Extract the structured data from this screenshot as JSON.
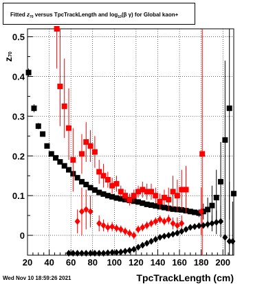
{
  "header": {
    "title_prefix": "Fitted ",
    "title_z": "z",
    "title_z_sub": "70",
    "title_mid": " versus TpcTrackLength and log",
    "title_log_sub": "10",
    "title_suffix": "(β  γ) for Global kaon+"
  },
  "footer": {
    "date": "Wed Nov 10 18:59:26 2021"
  },
  "chart_data": {
    "type": "scatter",
    "title": "Fitted z70 versus TpcTrackLength and log10(β γ) for Global kaon+",
    "xlabel": "TpcTrackLength (cm)",
    "ylabel": "z70",
    "xlim": [
      20,
      210
    ],
    "ylim": [
      -0.05,
      0.52
    ],
    "x_ticks": [
      "20",
      "40",
      "60",
      "80",
      "100",
      "120",
      "140",
      "160",
      "180",
      "200"
    ],
    "x_tick_values": [
      20,
      40,
      60,
      80,
      100,
      120,
      140,
      160,
      180,
      200
    ],
    "y_ticks": [
      "0",
      "0.1",
      "0.2",
      "0.3",
      "0.4",
      "0.5"
    ],
    "y_tick_values": [
      0,
      0.1,
      0.2,
      0.3,
      0.4,
      0.5
    ],
    "grid": true,
    "series": [
      {
        "color": "#000000",
        "marker": "square",
        "points": [
          [
            21,
            0.41
          ],
          [
            26,
            0.32
          ],
          [
            30,
            0.275
          ],
          [
            34,
            0.255
          ],
          [
            38,
            0.225
          ],
          [
            42,
            0.205
          ],
          [
            46,
            0.195
          ],
          [
            50,
            0.185
          ],
          [
            54,
            0.175
          ],
          [
            58,
            0.165
          ],
          [
            62,
            0.155
          ],
          [
            66,
            0.145
          ],
          [
            70,
            0.135
          ],
          [
            74,
            0.128
          ],
          [
            78,
            0.12
          ],
          [
            82,
            0.114
          ],
          [
            86,
            0.108
          ],
          [
            90,
            0.104
          ],
          [
            94,
            0.1
          ],
          [
            98,
            0.097
          ],
          [
            102,
            0.094
          ],
          [
            106,
            0.092
          ],
          [
            110,
            0.09
          ],
          [
            114,
            0.088
          ],
          [
            118,
            0.086
          ],
          [
            122,
            0.084
          ],
          [
            126,
            0.081
          ],
          [
            130,
            0.078
          ],
          [
            134,
            0.076
          ],
          [
            138,
            0.074
          ],
          [
            142,
            0.072
          ],
          [
            146,
            0.07
          ],
          [
            150,
            0.068
          ],
          [
            154,
            0.066
          ],
          [
            158,
            0.065
          ],
          [
            162,
            0.064
          ],
          [
            166,
            0.062
          ],
          [
            170,
            0.06
          ],
          [
            174,
            0.058
          ],
          [
            178,
            0.056
          ],
          [
            182,
            0.06
          ],
          [
            186,
            0.065
          ],
          [
            190,
            0.075
          ],
          [
            194,
            0.095
          ],
          [
            198,
            0.135
          ],
          [
            202,
            0.24
          ],
          [
            206,
            0.32
          ],
          [
            210,
            0.105
          ]
        ],
        "errors": [
          [
            0.01,
            0.01
          ],
          [
            0.01,
            0.01
          ],
          [
            0.008,
            0.008
          ],
          [
            0.006,
            0.006
          ],
          [
            0.005,
            0.005
          ],
          [
            0.004,
            0.004
          ],
          [
            0.003,
            0.003
          ],
          [
            0.003,
            0.003
          ],
          [
            0.003,
            0.003
          ],
          [
            0.003,
            0.003
          ],
          [
            0.003,
            0.003
          ],
          [
            0.003,
            0.003
          ],
          [
            0.003,
            0.003
          ],
          [
            0.003,
            0.003
          ],
          [
            0.003,
            0.003
          ],
          [
            0.003,
            0.003
          ],
          [
            0.003,
            0.003
          ],
          [
            0.003,
            0.003
          ],
          [
            0.003,
            0.003
          ],
          [
            0.003,
            0.003
          ],
          [
            0.003,
            0.003
          ],
          [
            0.003,
            0.003
          ],
          [
            0.003,
            0.003
          ],
          [
            0.003,
            0.003
          ],
          [
            0.003,
            0.003
          ],
          [
            0.003,
            0.003
          ],
          [
            0.003,
            0.003
          ],
          [
            0.003,
            0.003
          ],
          [
            0.003,
            0.003
          ],
          [
            0.003,
            0.003
          ],
          [
            0.003,
            0.003
          ],
          [
            0.003,
            0.003
          ],
          [
            0.003,
            0.003
          ],
          [
            0.003,
            0.003
          ],
          [
            0.003,
            0.003
          ],
          [
            0.003,
            0.003
          ],
          [
            0.003,
            0.003
          ],
          [
            0.003,
            0.003
          ],
          [
            0.004,
            0.004
          ],
          [
            0.01,
            0.01
          ],
          [
            0.02,
            0.02
          ],
          [
            0.03,
            0.03
          ],
          [
            0.05,
            0.05
          ],
          [
            0.07,
            0.07
          ],
          [
            0.1,
            0.1
          ],
          [
            0.2,
            0.2
          ],
          [
            0.28,
            0.28
          ],
          [
            0.25,
            0.25
          ]
        ]
      },
      {
        "color": "#ff0000",
        "marker": "square",
        "points": [
          [
            47,
            0.52
          ],
          [
            50,
            0.375
          ],
          [
            54,
            0.325
          ],
          [
            58,
            0.27
          ],
          [
            62,
            0.19
          ],
          [
            70,
            0.205
          ],
          [
            74,
            0.235
          ],
          [
            78,
            0.225
          ],
          [
            82,
            0.21
          ],
          [
            86,
            0.16
          ],
          [
            90,
            0.15
          ],
          [
            94,
            0.14
          ],
          [
            98,
            0.125
          ],
          [
            102,
            0.13
          ],
          [
            106,
            0.11
          ],
          [
            110,
            0.1
          ],
          [
            114,
            0.09
          ],
          [
            118,
            0.1
          ],
          [
            122,
            0.11
          ],
          [
            126,
            0.115
          ],
          [
            130,
            0.11
          ],
          [
            134,
            0.11
          ],
          [
            138,
            0.1
          ],
          [
            142,
            0.085
          ],
          [
            146,
            0.095
          ],
          [
            150,
            0.09
          ],
          [
            154,
            0.11
          ],
          [
            158,
            0.1
          ],
          [
            162,
            0.115
          ],
          [
            166,
            0.115
          ],
          [
            181,
            0.205
          ]
        ],
        "errors": [
          [
            0.1,
            0.56
          ],
          [
            0.1,
            0.2
          ],
          [
            0.08,
            0.12
          ],
          [
            0.08,
            0.1
          ],
          [
            0.08,
            0.08
          ],
          [
            0.05,
            0.05
          ],
          [
            0.05,
            0.05
          ],
          [
            0.04,
            0.04
          ],
          [
            0.04,
            0.04
          ],
          [
            0.03,
            0.03
          ],
          [
            0.03,
            0.03
          ],
          [
            0.02,
            0.02
          ],
          [
            0.02,
            0.02
          ],
          [
            0.02,
            0.02
          ],
          [
            0.015,
            0.015
          ],
          [
            0.015,
            0.015
          ],
          [
            0.015,
            0.015
          ],
          [
            0.015,
            0.015
          ],
          [
            0.015,
            0.015
          ],
          [
            0.02,
            0.02
          ],
          [
            0.02,
            0.02
          ],
          [
            0.02,
            0.02
          ],
          [
            0.02,
            0.02
          ],
          [
            0.02,
            0.02
          ],
          [
            0.02,
            0.02
          ],
          [
            0.03,
            0.03
          ],
          [
            0.04,
            0.04
          ],
          [
            0.04,
            0.04
          ],
          [
            0.05,
            0.05
          ],
          [
            0.06,
            0.06
          ],
          [
            0.5,
            0.4
          ]
        ]
      },
      {
        "color": "#ff0000",
        "marker": "diamond",
        "points": [
          [
            66,
            0.035
          ],
          [
            70,
            0.06
          ],
          [
            74,
            0.065
          ],
          [
            78,
            0.06
          ],
          [
            86,
            0.03
          ],
          [
            90,
            0.025
          ],
          [
            94,
            0.02
          ],
          [
            98,
            0.022
          ],
          [
            102,
            0.018
          ],
          [
            106,
            0.015
          ],
          [
            110,
            0.01
          ],
          [
            114,
            0.005
          ],
          [
            118,
            0.0
          ],
          [
            122,
            0.015
          ],
          [
            126,
            0.02
          ],
          [
            130,
            0.025
          ],
          [
            134,
            0.03
          ],
          [
            138,
            0.035
          ],
          [
            142,
            0.04
          ],
          [
            146,
            0.035
          ],
          [
            150,
            0.04
          ],
          [
            154,
            0.03
          ],
          [
            158,
            0.025
          ],
          [
            162,
            0.03
          ],
          [
            180,
            0.06
          ]
        ],
        "errors": [
          [
            0.03,
            0.03
          ],
          [
            0.06,
            0.06
          ],
          [
            0.05,
            0.05
          ],
          [
            0.04,
            0.04
          ],
          [
            0.02,
            0.02
          ],
          [
            0.015,
            0.015
          ],
          [
            0.012,
            0.012
          ],
          [
            0.012,
            0.012
          ],
          [
            0.01,
            0.01
          ],
          [
            0.01,
            0.01
          ],
          [
            0.01,
            0.01
          ],
          [
            0.01,
            0.01
          ],
          [
            0.01,
            0.01
          ],
          [
            0.01,
            0.01
          ],
          [
            0.01,
            0.01
          ],
          [
            0.01,
            0.01
          ],
          [
            0.01,
            0.01
          ],
          [
            0.01,
            0.01
          ],
          [
            0.01,
            0.01
          ],
          [
            0.01,
            0.01
          ],
          [
            0.012,
            0.012
          ],
          [
            0.015,
            0.015
          ],
          [
            0.02,
            0.02
          ],
          [
            0.02,
            0.02
          ],
          [
            0.06,
            0.06
          ]
        ]
      },
      {
        "color": "#000000",
        "marker": "diamond",
        "points": [
          [
            58,
            -0.045
          ],
          [
            62,
            -0.045
          ],
          [
            66,
            -0.045
          ],
          [
            70,
            -0.045
          ],
          [
            74,
            -0.045
          ],
          [
            78,
            -0.045
          ],
          [
            82,
            -0.045
          ],
          [
            86,
            -0.045
          ],
          [
            90,
            -0.045
          ],
          [
            94,
            -0.044
          ],
          [
            98,
            -0.043
          ],
          [
            102,
            -0.043
          ],
          [
            106,
            -0.042
          ],
          [
            110,
            -0.04
          ],
          [
            114,
            -0.038
          ],
          [
            118,
            -0.035
          ],
          [
            122,
            -0.03
          ],
          [
            126,
            -0.025
          ],
          [
            130,
            -0.02
          ],
          [
            134,
            -0.015
          ],
          [
            138,
            -0.01
          ],
          [
            142,
            -0.005
          ],
          [
            146,
            -0.002
          ],
          [
            150,
            0.0
          ],
          [
            154,
            0.003
          ],
          [
            158,
            0.006
          ],
          [
            162,
            0.01
          ],
          [
            166,
            0.015
          ],
          [
            170,
            0.02
          ],
          [
            174,
            0.022
          ],
          [
            178,
            0.024
          ],
          [
            182,
            0.025
          ],
          [
            186,
            0.028
          ],
          [
            190,
            0.03
          ],
          [
            194,
            0.033
          ],
          [
            198,
            0.035
          ],
          [
            202,
            -0.005
          ],
          [
            206,
            -0.015
          ],
          [
            209,
            -0.015
          ]
        ],
        "errors": [
          [
            0.003,
            0.003
          ],
          [
            0.003,
            0.003
          ],
          [
            0.003,
            0.003
          ],
          [
            0.003,
            0.003
          ],
          [
            0.003,
            0.003
          ],
          [
            0.003,
            0.003
          ],
          [
            0.003,
            0.003
          ],
          [
            0.003,
            0.003
          ],
          [
            0.003,
            0.003
          ],
          [
            0.003,
            0.003
          ],
          [
            0.003,
            0.003
          ],
          [
            0.003,
            0.003
          ],
          [
            0.003,
            0.003
          ],
          [
            0.003,
            0.003
          ],
          [
            0.003,
            0.003
          ],
          [
            0.003,
            0.003
          ],
          [
            0.003,
            0.003
          ],
          [
            0.003,
            0.003
          ],
          [
            0.003,
            0.003
          ],
          [
            0.003,
            0.003
          ],
          [
            0.003,
            0.003
          ],
          [
            0.003,
            0.003
          ],
          [
            0.003,
            0.003
          ],
          [
            0.003,
            0.003
          ],
          [
            0.003,
            0.003
          ],
          [
            0.003,
            0.003
          ],
          [
            0.003,
            0.003
          ],
          [
            0.003,
            0.003
          ],
          [
            0.003,
            0.003
          ],
          [
            0.003,
            0.003
          ],
          [
            0.003,
            0.003
          ],
          [
            0.005,
            0.005
          ],
          [
            0.01,
            0.01
          ],
          [
            0.02,
            0.02
          ],
          [
            0.03,
            0.03
          ],
          [
            0.04,
            0.04
          ],
          [
            0.1,
            0.1
          ],
          [
            0.15,
            0.15
          ],
          [
            0.1,
            0.1
          ]
        ]
      }
    ]
  }
}
